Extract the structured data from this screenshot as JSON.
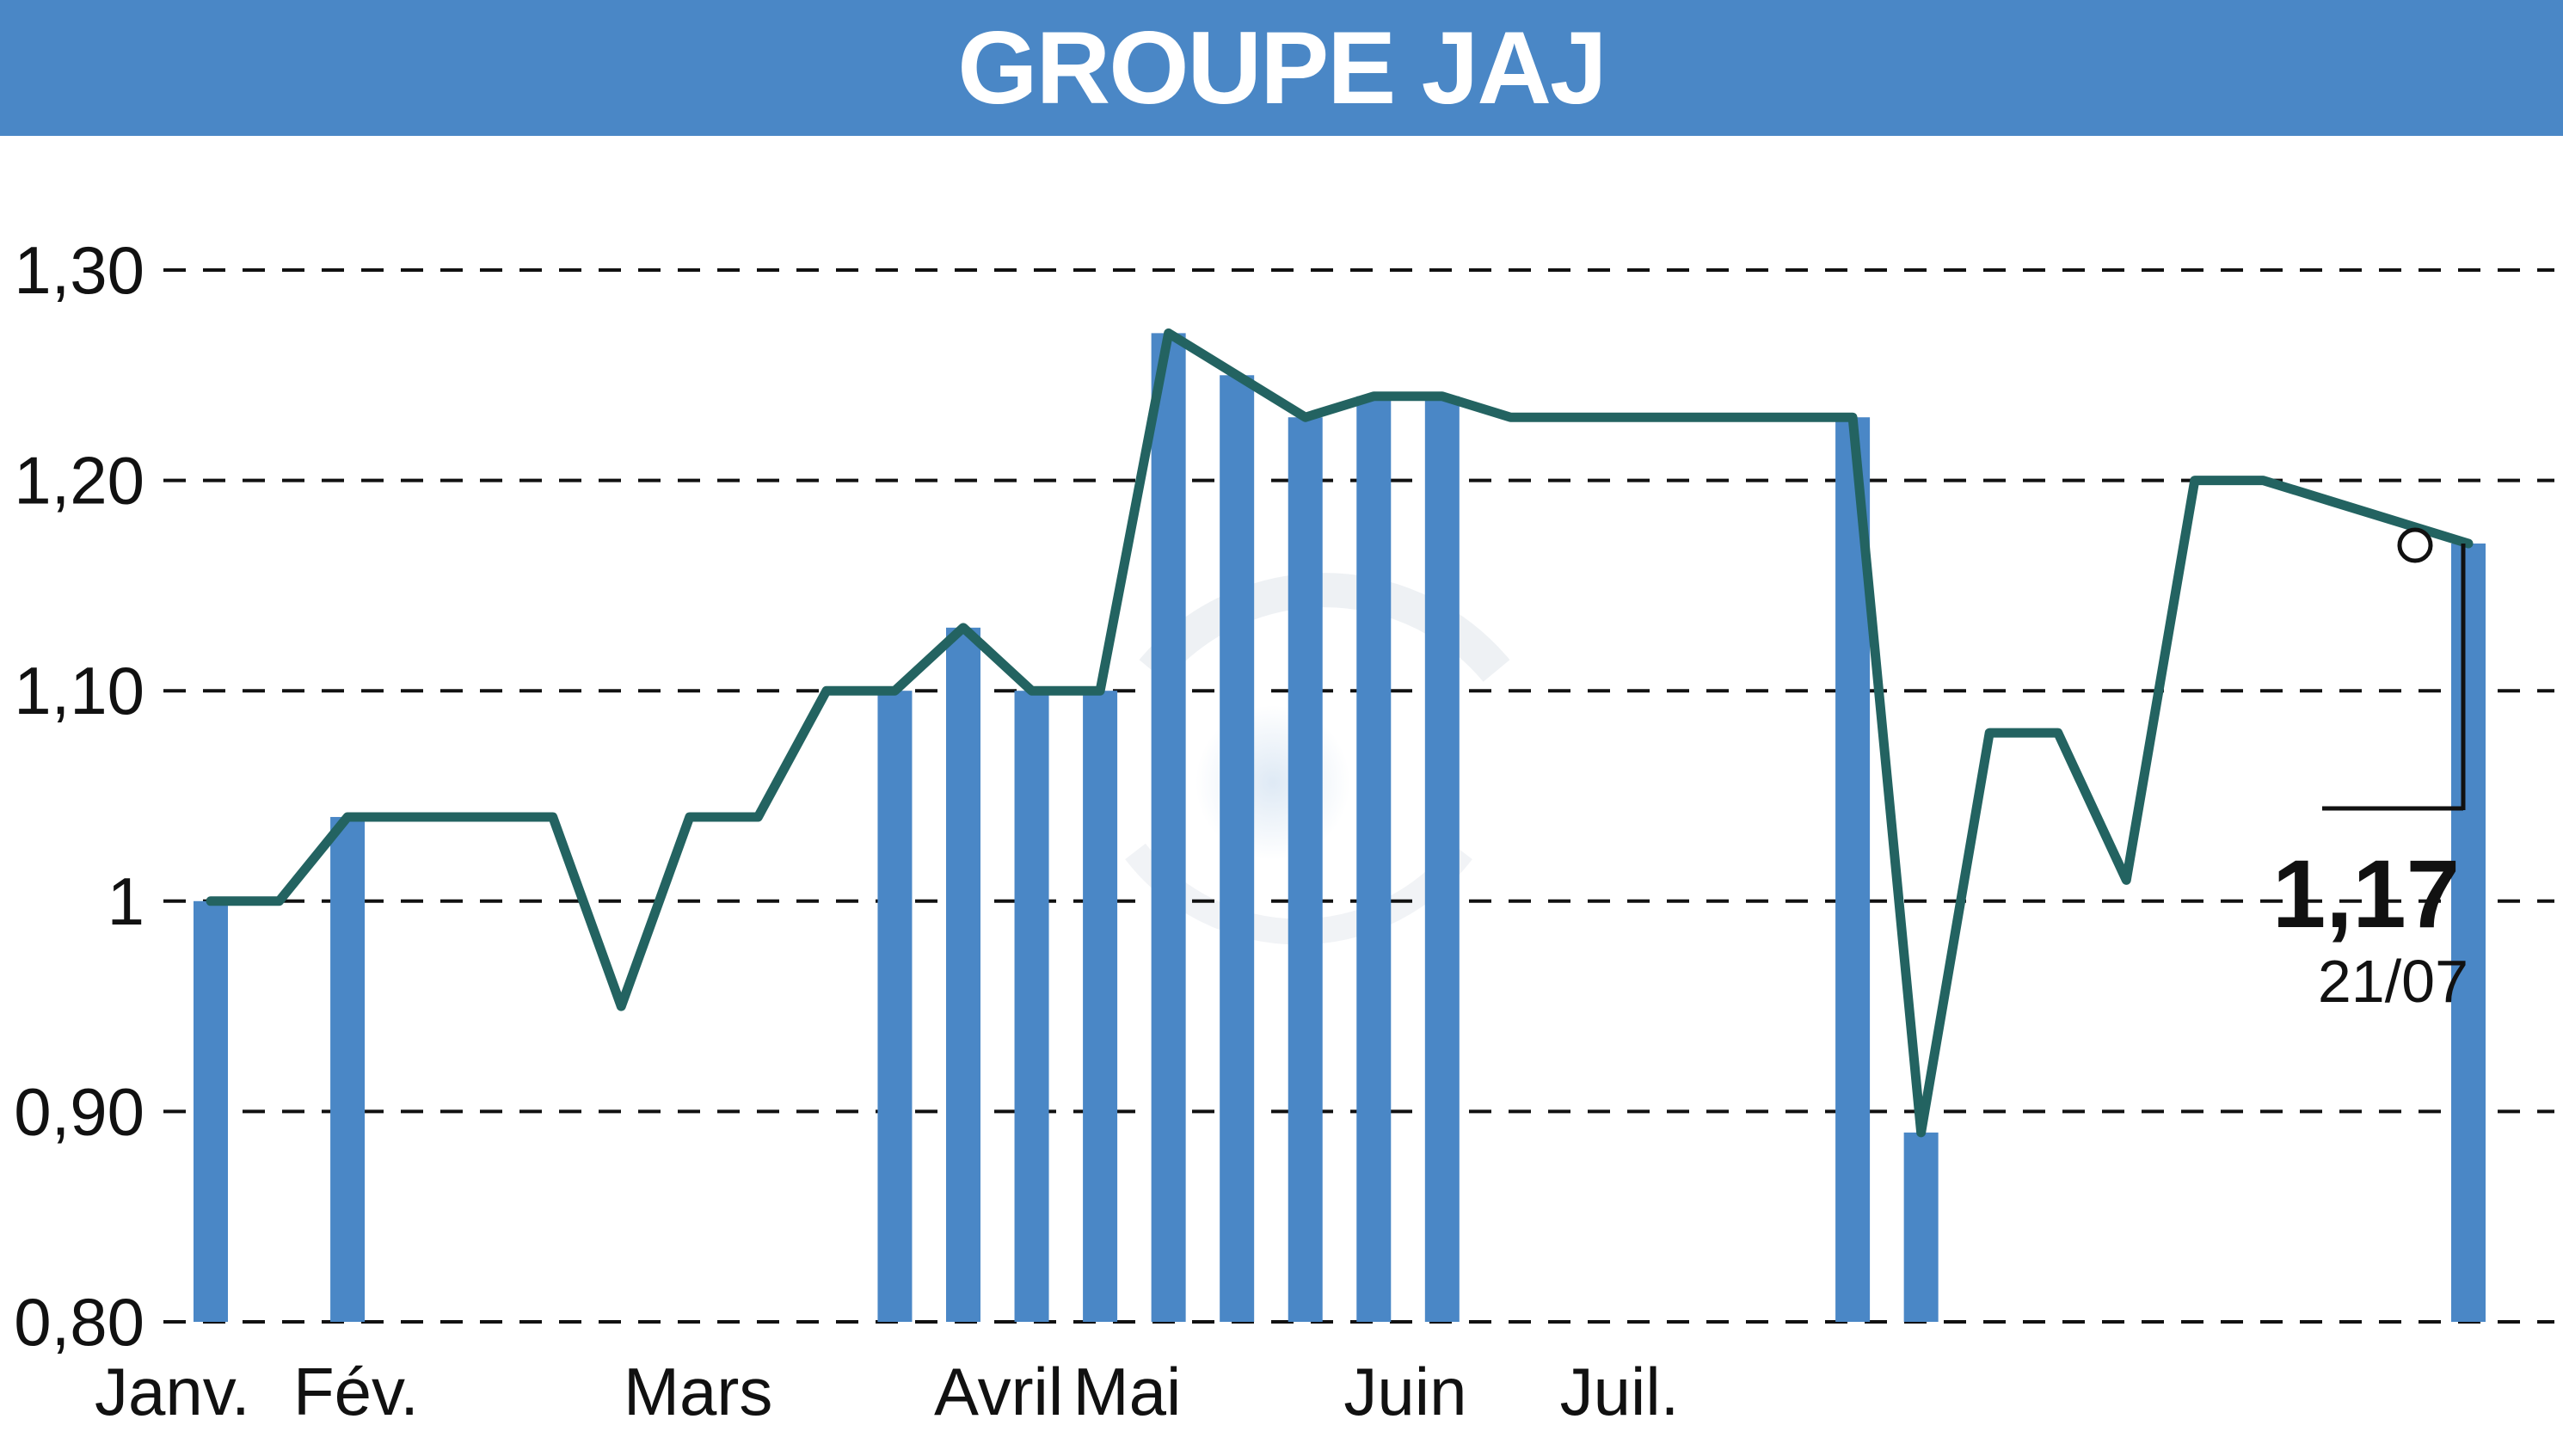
{
  "chart_data": {
    "type": "line",
    "title": "GROUPE JAJ",
    "xlabel": "",
    "ylabel": "",
    "ylim": [
      0.8,
      1.3
    ],
    "yticks": [
      {
        "value": 0.8,
        "label": "0,80"
      },
      {
        "value": 0.9,
        "label": "0,90"
      },
      {
        "value": 1.0,
        "label": "1"
      },
      {
        "value": 1.1,
        "label": "1,10"
      },
      {
        "value": 1.2,
        "label": "1,20"
      },
      {
        "value": 1.3,
        "label": "1,30"
      }
    ],
    "xticks": [
      "Janv.",
      "Fév.",
      "Mars",
      "Avril",
      "Mai",
      "Juin",
      "Juil."
    ],
    "grid": "horizontal dashed",
    "colors": {
      "header": "#4a87c6",
      "line": "#236361",
      "volume": "#4a87c6",
      "grid": "#111111"
    },
    "series": [
      {
        "values": [
          1.0,
          1.0,
          1.04,
          1.04,
          1.04,
          1.04,
          0.95,
          1.04,
          1.04,
          1.1,
          1.1,
          1.13,
          1.1,
          1.1,
          1.27,
          1.25,
          1.23,
          1.24,
          1.24,
          1.23,
          1.23,
          1.23,
          1.23,
          1.23,
          1.23,
          0.89,
          1.08,
          1.08,
          1.01,
          1.2,
          1.2,
          1.19,
          1.18,
          1.17
        ]
      }
    ],
    "volume_bars": [
      0.8,
      0.8,
      0.8,
      0.8,
      0.8,
      0.8,
      0.8,
      0.8,
      0.8,
      0.8,
      0.8,
      0.8,
      0.8
    ],
    "last_value": "1,17",
    "last_date": "21/07"
  }
}
